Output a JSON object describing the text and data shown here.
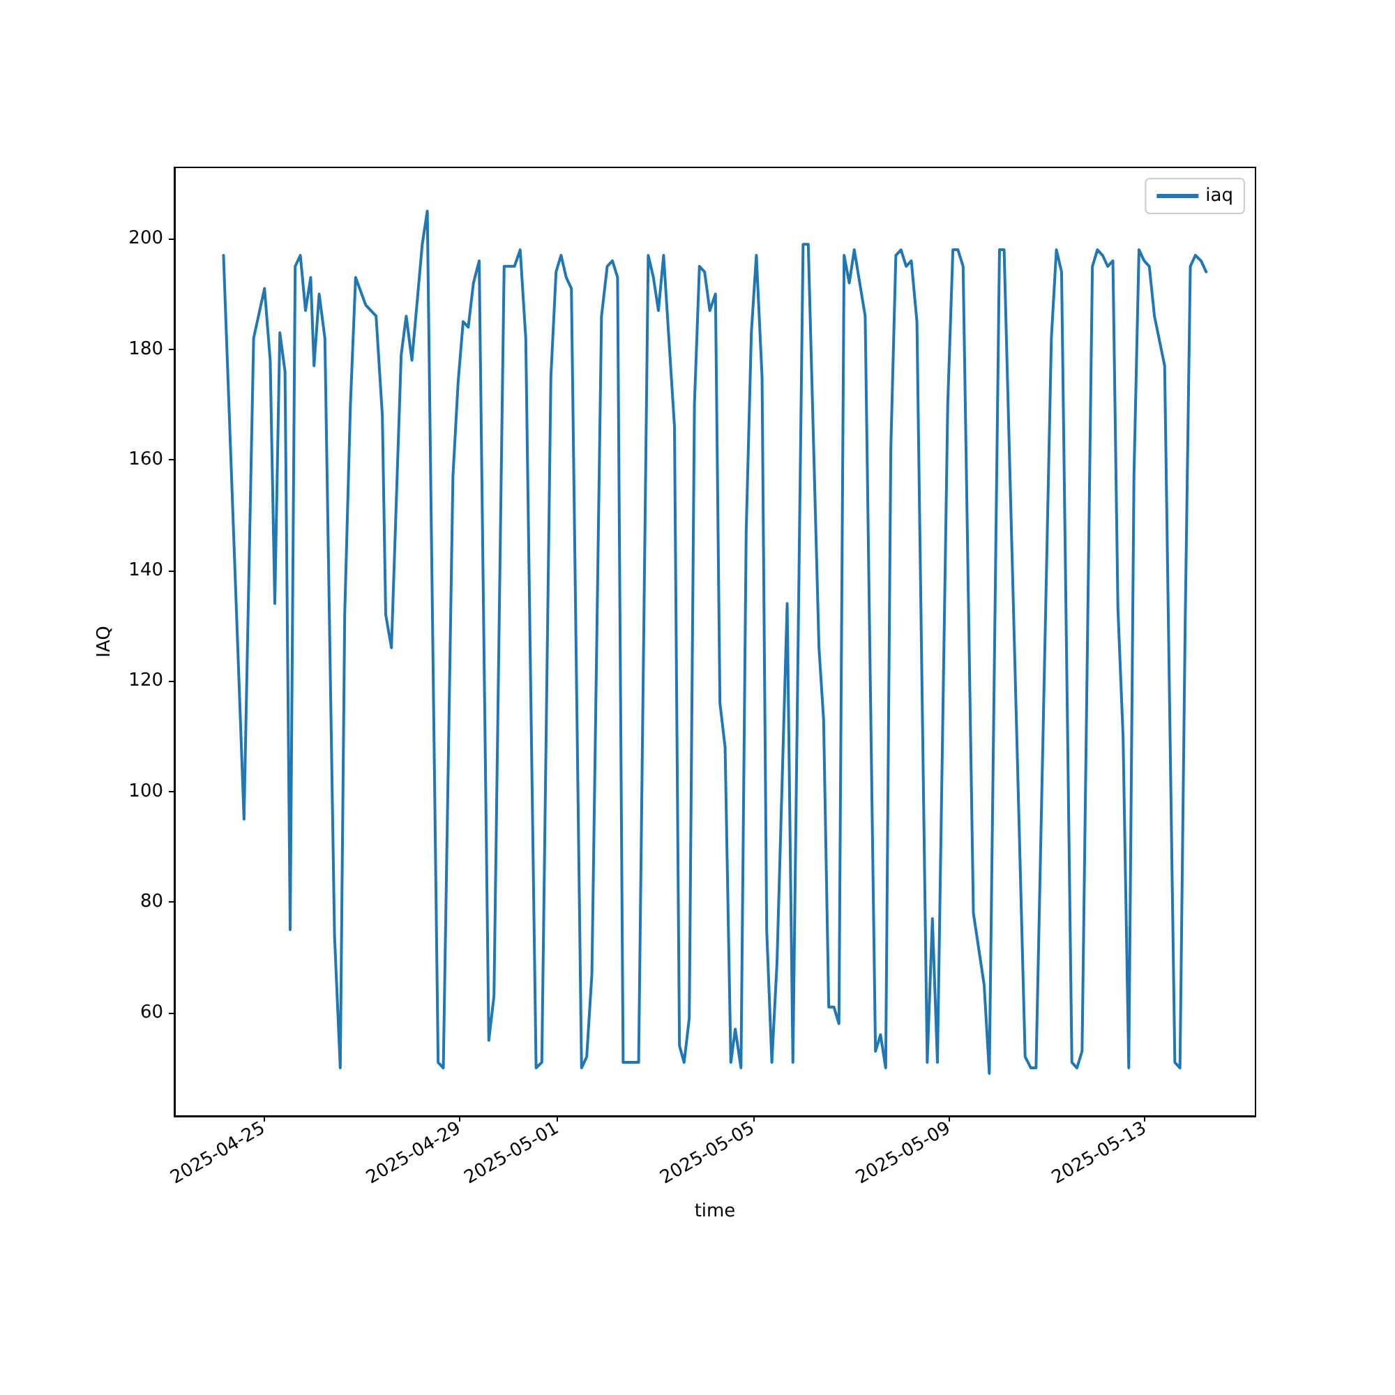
{
  "chart_data": {
    "type": "line",
    "xlabel": "time",
    "ylabel": "IAQ",
    "x": [
      "2025-04-24T04:19",
      "2025-04-24T14:22",
      "2025-04-24T19:05",
      "2025-04-25T00:25",
      "2025-04-25T03:13",
      "2025-04-25T05:28",
      "2025-04-25T07:56",
      "2025-04-25T10:28",
      "2025-04-25T13:00",
      "2025-04-25T15:27",
      "2025-04-25T17:59",
      "2025-04-25T20:31",
      "2025-04-25T23:03",
      "2025-04-26T00:41",
      "2025-04-26T03:13",
      "2025-04-26T06:01",
      "2025-04-26T10:44",
      "2025-04-26T13:33",
      "2025-04-26T15:44",
      "2025-04-26T18:32",
      "2025-04-26T21:04",
      "2025-04-27T02:03",
      "2025-04-27T07:07",
      "2025-04-27T10:11",
      "2025-04-27T11:50",
      "2025-04-27T14:38",
      "2025-04-27T19:25",
      "2025-04-27T21:53",
      "2025-04-28T00:41",
      "2025-04-28T05:45",
      "2025-04-28T08:13",
      "2025-04-28T13:32",
      "2025-04-28T16:04",
      "2025-04-28T20:47",
      "2025-04-28T23:19",
      "2025-04-29T01:47",
      "2025-04-29T04:19",
      "2025-04-29T06:50",
      "2025-04-29T09:39",
      "2025-04-29T14:22",
      "2025-04-29T16:54",
      "2025-04-29T21:53",
      "2025-04-30T02:57",
      "2025-04-30T05:45",
      "2025-04-30T08:29",
      "2025-04-30T13:33",
      "2025-04-30T16:21",
      "2025-04-30T20:48",
      "2025-04-30T23:20",
      "2025-05-01T01:47",
      "2025-05-01T04:19",
      "2025-05-01T06:51",
      "2025-05-01T11:50",
      "2025-05-01T14:22",
      "2025-05-01T16:54",
      "2025-05-01T21:37",
      "2025-05-02T00:25",
      "2025-05-02T02:57",
      "2025-05-02T05:29",
      "2025-05-02T08:13",
      "2025-05-02T15:49",
      "2025-05-02T20:31",
      "2025-05-02T23:03",
      "2025-05-03T01:31",
      "2025-05-03T04:03",
      "2025-05-03T09:23",
      "2025-05-03T11:50",
      "2025-05-03T14:06",
      "2025-05-03T16:38",
      "2025-05-03T19:10",
      "2025-05-03T21:37",
      "2025-05-04T00:09",
      "2025-05-04T02:41",
      "2025-05-04T05:29",
      "2025-05-04T07:40",
      "2025-05-04T10:12",
      "2025-05-04T13:01",
      "2025-05-04T15:11",
      "2025-05-04T17:59",
      "2025-05-04T20:32",
      "2025-05-04T23:04",
      "2025-05-05T01:31",
      "2025-05-05T04:19",
      "2025-05-05T06:35",
      "2025-05-05T09:07",
      "2025-05-05T11:38",
      "2025-05-05T16:38",
      "2025-05-05T19:26",
      "2025-05-06T00:26",
      "2025-05-06T02:58",
      "2025-05-06T08:13",
      "2025-05-06T10:29",
      "2025-05-06T13:01",
      "2025-05-06T15:32",
      "2025-05-06T18:00",
      "2025-05-06T20:32",
      "2025-05-06T23:04",
      "2025-05-07T01:31",
      "2025-05-07T06:52",
      "2025-05-07T11:55",
      "2025-05-07T14:23",
      "2025-05-07T16:55",
      "2025-05-07T19:26",
      "2025-05-07T21:54",
      "2025-05-08T00:26",
      "2025-05-08T02:58",
      "2025-05-08T05:29",
      "2025-05-08T08:14",
      "2025-05-08T13:17",
      "2025-05-08T15:49",
      "2025-05-08T18:17",
      "2025-05-08T23:20",
      "2025-05-09T01:52",
      "2025-05-09T04:20",
      "2025-05-09T06:52",
      "2025-05-09T11:55",
      "2025-05-09T17:11",
      "2025-05-09T19:43",
      "2025-05-10T00:42",
      "2025-05-10T02:58",
      "2025-05-10T13:17",
      "2025-05-10T16:05",
      "2025-05-10T18:37",
      "2025-05-11T02:08",
      "2025-05-11T04:36",
      "2025-05-11T07:08",
      "2025-05-11T12:12",
      "2025-05-11T14:40",
      "2025-05-11T17:11",
      "2025-05-11T22:15",
      "2025-05-12T00:43",
      "2025-05-12T03:14",
      "2025-05-12T05:46",
      "2025-05-12T08:18",
      "2025-05-12T10:46",
      "2025-05-12T13:17",
      "2025-05-12T16:05",
      "2025-05-12T18:37",
      "2025-05-12T21:05",
      "2025-05-12T23:37",
      "2025-05-13T02:08",
      "2025-05-13T04:40",
      "2025-05-13T09:40",
      "2025-05-13T14:40",
      "2025-05-13T17:11",
      "2025-05-13T19:43",
      "2025-05-13T22:15",
      "2025-05-14T00:43",
      "2025-05-14T03:31",
      "2025-05-14T06:02"
    ],
    "series": [
      {
        "name": "iaq",
        "color": "#1f77b4",
        "values": [
          197,
          95,
          182,
          191,
          178,
          134,
          183,
          176,
          75,
          195,
          197,
          187,
          193,
          177,
          190,
          182,
          74,
          50,
          132,
          170,
          193,
          188,
          186,
          168,
          132,
          126,
          179,
          186,
          178,
          199,
          205,
          51,
          50,
          157,
          174,
          185,
          184,
          192,
          196,
          55,
          63,
          195,
          195,
          198,
          182,
          50,
          51,
          175,
          194,
          197,
          193,
          191,
          50,
          52,
          67,
          186,
          195,
          196,
          193,
          51,
          51,
          197,
          193,
          187,
          197,
          166,
          54,
          51,
          59,
          170,
          195,
          194,
          187,
          190,
          116,
          108,
          51,
          57,
          50,
          147,
          183,
          197,
          175,
          75,
          51,
          69,
          134,
          51,
          199,
          199,
          126,
          113,
          61,
          61,
          58,
          197,
          192,
          198,
          186,
          53,
          56,
          50,
          162,
          197,
          198,
          195,
          196,
          185,
          51,
          77,
          51,
          170,
          198,
          198,
          195,
          78,
          65,
          49,
          198,
          198,
          52,
          50,
          50,
          182,
          198,
          194,
          51,
          50,
          53,
          195,
          198,
          197,
          195,
          196,
          133,
          110,
          50,
          157,
          198,
          196,
          195,
          186,
          177,
          51,
          50,
          130,
          195,
          197,
          196,
          194
        ]
      }
    ],
    "xlim": [
      "2025-04-23T04:14",
      "2025-05-15T06:12"
    ],
    "xticks": [
      "2025-04-25",
      "2025-04-29",
      "2025-05-01",
      "2025-05-05",
      "2025-05-09",
      "2025-05-13"
    ],
    "ylim": [
      41.3,
      212.9
    ],
    "yticks": [
      60,
      80,
      100,
      120,
      140,
      160,
      180,
      200
    ],
    "legend": "top right",
    "marker": "none",
    "line_style": "solid",
    "grid": false
  }
}
